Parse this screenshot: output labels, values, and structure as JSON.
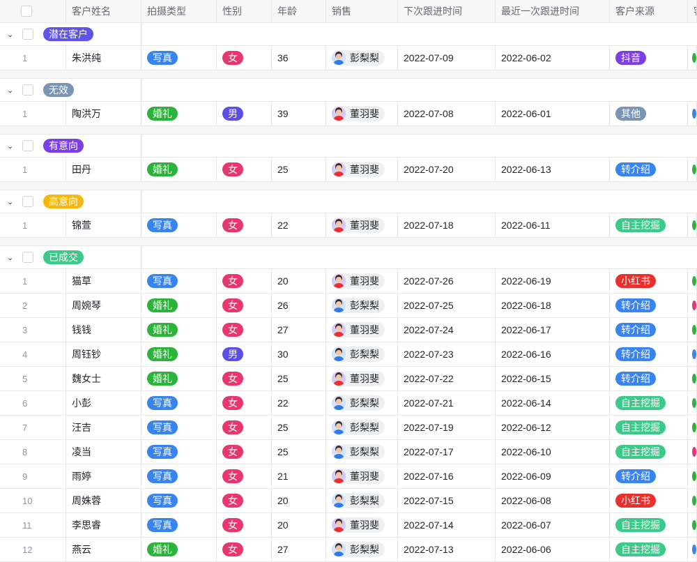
{
  "columns": [
    "客户姓名",
    "拍摄类型",
    "性别",
    "年龄",
    "销售",
    "下次跟进时间",
    "最近一次跟进时间",
    "客户来源",
    "客"
  ],
  "colors": {
    "写真": "#3a84f0",
    "婚礼": "#2db23b",
    "女": "#e8366f",
    "男": "#5b4ee8",
    "抖音": "#7b3fe4",
    "其他": "#7a95b3",
    "转介绍": "#3a84f0",
    "自主挖掘": "#3cc98a",
    "小红书": "#e8302e",
    "green": "#2db23b",
    "blue": "#3a84f0",
    "pink": "#e8366f"
  },
  "sales_avatar": {
    "彭梨梨": {
      "bg": "#cfe3fb",
      "shirt": "#2f7be8"
    },
    "董羽斐": {
      "bg": "#d8c8f5",
      "shirt": "#e8302e"
    }
  },
  "groups": [
    {
      "label": "潜在客户",
      "color": "#6053e8",
      "rows": [
        [
          "1",
          "朱洪纯",
          "写真",
          "女",
          "36",
          "彭梨梨",
          "2022-07-09",
          "2022-06-02",
          "抖音",
          "green"
        ]
      ]
    },
    {
      "label": "无效",
      "color": "#7a95b3",
      "rows": [
        [
          "1",
          "陶洪万",
          "婚礼",
          "男",
          "39",
          "董羽斐",
          "2022-07-08",
          "2022-06-01",
          "其他",
          "blue"
        ]
      ]
    },
    {
      "label": "有意向",
      "color": "#7b3fe4",
      "rows": [
        [
          "1",
          "田丹",
          "婚礼",
          "女",
          "25",
          "董羽斐",
          "2022-07-20",
          "2022-06-13",
          "转介绍",
          "green"
        ]
      ]
    },
    {
      "label": "高意向",
      "color": "#f5b70f",
      "rows": [
        [
          "1",
          "锦萱",
          "写真",
          "女",
          "22",
          "董羽斐",
          "2022-07-18",
          "2022-06-11",
          "自主挖掘",
          "green"
        ]
      ]
    },
    {
      "label": "已成交",
      "color": "#3cc98a",
      "rows": [
        [
          "1",
          "猫草",
          "写真",
          "女",
          "20",
          "董羽斐",
          "2022-07-26",
          "2022-06-19",
          "小红书",
          "green"
        ],
        [
          "2",
          "周婉琴",
          "婚礼",
          "女",
          "26",
          "彭梨梨",
          "2022-07-25",
          "2022-06-18",
          "转介绍",
          "pink"
        ],
        [
          "3",
          "钱钱",
          "婚礼",
          "女",
          "27",
          "董羽斐",
          "2022-07-24",
          "2022-06-17",
          "转介绍",
          "green"
        ],
        [
          "4",
          "周钰钞",
          "婚礼",
          "男",
          "30",
          "彭梨梨",
          "2022-07-23",
          "2022-06-16",
          "转介绍",
          "blue"
        ],
        [
          "5",
          "魏女士",
          "婚礼",
          "女",
          "25",
          "董羽斐",
          "2022-07-22",
          "2022-06-15",
          "转介绍",
          "green"
        ],
        [
          "6",
          "小彭",
          "写真",
          "女",
          "22",
          "彭梨梨",
          "2022-07-21",
          "2022-06-14",
          "自主挖掘",
          "green"
        ],
        [
          "7",
          "汪吉",
          "写真",
          "女",
          "25",
          "彭梨梨",
          "2022-07-19",
          "2022-06-12",
          "自主挖掘",
          "green"
        ],
        [
          "8",
          "凌当",
          "写真",
          "女",
          "25",
          "彭梨梨",
          "2022-07-17",
          "2022-06-10",
          "自主挖掘",
          "pink"
        ],
        [
          "9",
          "雨婷",
          "写真",
          "女",
          "21",
          "董羽斐",
          "2022-07-16",
          "2022-06-09",
          "转介绍",
          "green"
        ],
        [
          "10",
          "周姝蓉",
          "写真",
          "女",
          "20",
          "彭梨梨",
          "2022-07-15",
          "2022-06-08",
          "小红书",
          "green"
        ],
        [
          "11",
          "李思睿",
          "写真",
          "女",
          "20",
          "董羽斐",
          "2022-07-14",
          "2022-06-07",
          "自主挖掘",
          "green"
        ],
        [
          "12",
          "燕云",
          "婚礼",
          "女",
          "27",
          "彭梨梨",
          "2022-07-13",
          "2022-06-06",
          "自主挖掘",
          "blue"
        ]
      ]
    }
  ]
}
